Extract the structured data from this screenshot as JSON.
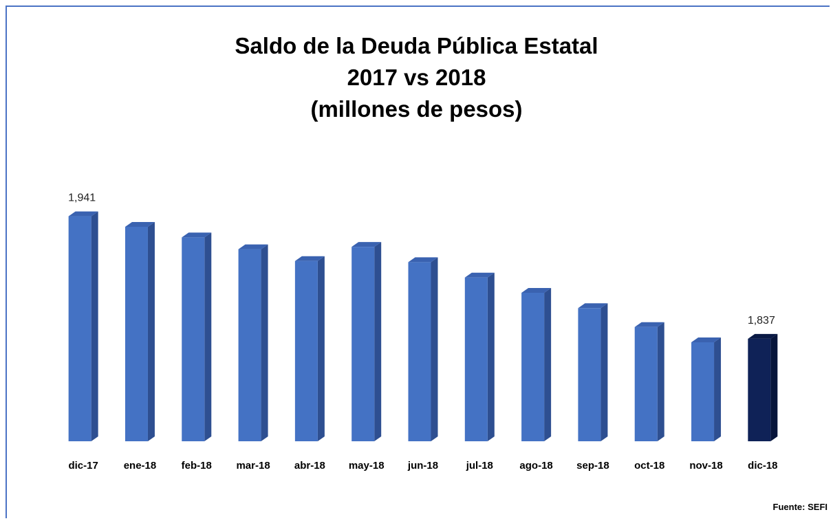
{
  "chart_data": {
    "type": "bar",
    "title_lines": [
      "Saldo de la Deuda Pública Estatal",
      "2017 vs 2018",
      "(millones de pesos)"
    ],
    "categories": [
      "dic-17",
      "ene-18",
      "feb-18",
      "mar-18",
      "abr-18",
      "may-18",
      "jun-18",
      "jul-18",
      "ago-18",
      "sep-18",
      "oct-18",
      "nov-18",
      "dic-18"
    ],
    "values": [
      1941,
      1932,
      1923,
      1913,
      1903,
      1915,
      1902,
      1889,
      1876,
      1863,
      1847,
      1834,
      1837
    ],
    "data_labels": [
      {
        "index": 0,
        "text": "1,941"
      },
      {
        "index": 12,
        "text": "1,837"
      }
    ],
    "ylim": [
      1750,
      1960
    ],
    "grid": false,
    "legend": "none",
    "colors": {
      "bar": "#4472c4",
      "bar_side": "#2e4f91",
      "bar_top": "#3a62b0",
      "highlight_bar": "#0f2257",
      "highlight_side": "#07153a",
      "highlight_top": "#0a1a45",
      "frame": "#4a72c4"
    },
    "highlight_index": 12
  },
  "source_note": "Fuente: SEFI"
}
